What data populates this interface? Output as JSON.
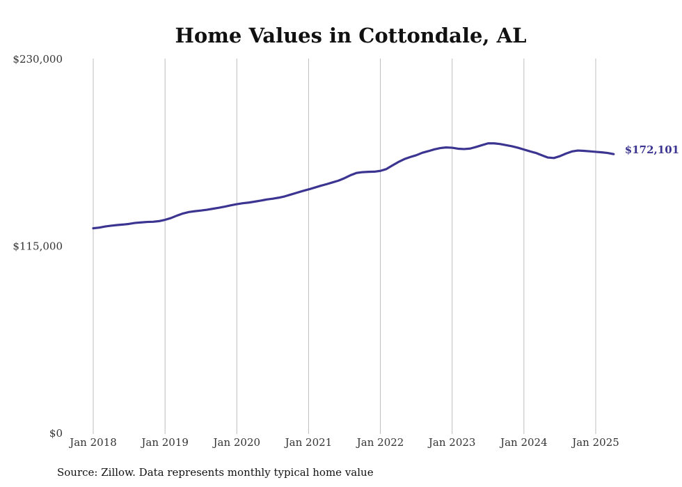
{
  "chart_data": {
    "type": "line",
    "title": "Home Values in Cottondale, AL",
    "xlabel": "",
    "ylabel": "",
    "ylim": [
      0,
      230000
    ],
    "y_ticks": [
      {
        "value": 230000,
        "label": "$230,000"
      },
      {
        "value": 115000,
        "label": "$115,000"
      },
      {
        "value": 0,
        "label": "$0"
      }
    ],
    "x_ticks": [
      {
        "value": "2018-01",
        "label": "Jan 2018"
      },
      {
        "value": "2019-01",
        "label": "Jan 2019"
      },
      {
        "value": "2020-01",
        "label": "Jan 2020"
      },
      {
        "value": "2021-01",
        "label": "Jan 2021"
      },
      {
        "value": "2022-01",
        "label": "Jan 2022"
      },
      {
        "value": "2023-01",
        "label": "Jan 2023"
      },
      {
        "value": "2024-01",
        "label": "Jan 2024"
      },
      {
        "value": "2025-01",
        "label": "Jan 2025"
      }
    ],
    "grid": "vertical",
    "color": "#3b3591",
    "end_label": "$172,101",
    "source": "Source: Zillow. Data represents monthly typical home value",
    "series": [
      {
        "points": [
          [
            "2018-01",
            126500
          ],
          [
            "2018-02",
            126900
          ],
          [
            "2018-03",
            127600
          ],
          [
            "2018-04",
            128100
          ],
          [
            "2018-05",
            128500
          ],
          [
            "2018-06",
            128800
          ],
          [
            "2018-07",
            129200
          ],
          [
            "2018-08",
            129800
          ],
          [
            "2018-09",
            130100
          ],
          [
            "2018-10",
            130400
          ],
          [
            "2018-11",
            130500
          ],
          [
            "2018-12",
            130900
          ],
          [
            "2019-01",
            131700
          ],
          [
            "2019-02",
            132800
          ],
          [
            "2019-03",
            134300
          ],
          [
            "2019-04",
            135600
          ],
          [
            "2019-05",
            136500
          ],
          [
            "2019-06",
            137000
          ],
          [
            "2019-07",
            137400
          ],
          [
            "2019-08",
            137900
          ],
          [
            "2019-09",
            138500
          ],
          [
            "2019-10",
            139100
          ],
          [
            "2019-11",
            139800
          ],
          [
            "2019-12",
            140600
          ],
          [
            "2020-01",
            141300
          ],
          [
            "2020-02",
            141900
          ],
          [
            "2020-03",
            142300
          ],
          [
            "2020-04",
            142900
          ],
          [
            "2020-05",
            143500
          ],
          [
            "2020-06",
            144200
          ],
          [
            "2020-07",
            144700
          ],
          [
            "2020-08",
            145300
          ],
          [
            "2020-09",
            146100
          ],
          [
            "2020-10",
            147200
          ],
          [
            "2020-11",
            148300
          ],
          [
            "2020-12",
            149400
          ],
          [
            "2021-01",
            150400
          ],
          [
            "2021-02",
            151500
          ],
          [
            "2021-03",
            152600
          ],
          [
            "2021-04",
            153600
          ],
          [
            "2021-05",
            154700
          ],
          [
            "2021-06",
            155800
          ],
          [
            "2021-07",
            157300
          ],
          [
            "2021-08",
            159100
          ],
          [
            "2021-09",
            160500
          ],
          [
            "2021-10",
            161000
          ],
          [
            "2021-11",
            161200
          ],
          [
            "2021-12",
            161300
          ],
          [
            "2022-01",
            161800
          ],
          [
            "2022-02",
            162900
          ],
          [
            "2022-03",
            165100
          ],
          [
            "2022-04",
            167200
          ],
          [
            "2022-05",
            169000
          ],
          [
            "2022-06",
            170300
          ],
          [
            "2022-07",
            171400
          ],
          [
            "2022-08",
            172900
          ],
          [
            "2022-09",
            173900
          ],
          [
            "2022-10",
            175000
          ],
          [
            "2022-11",
            175800
          ],
          [
            "2022-12",
            176200
          ],
          [
            "2023-01",
            176000
          ],
          [
            "2023-02",
            175400
          ],
          [
            "2023-03",
            175200
          ],
          [
            "2023-04",
            175500
          ],
          [
            "2023-05",
            176500
          ],
          [
            "2023-06",
            177600
          ],
          [
            "2023-07",
            178700
          ],
          [
            "2023-08",
            178700
          ],
          [
            "2023-09",
            178300
          ],
          [
            "2023-10",
            177600
          ],
          [
            "2023-11",
            176900
          ],
          [
            "2023-12",
            176000
          ],
          [
            "2024-01",
            174900
          ],
          [
            "2024-02",
            173800
          ],
          [
            "2024-03",
            172800
          ],
          [
            "2024-04",
            171400
          ],
          [
            "2024-05",
            170000
          ],
          [
            "2024-06",
            169700
          ],
          [
            "2024-07",
            170800
          ],
          [
            "2024-08",
            172400
          ],
          [
            "2024-09",
            173700
          ],
          [
            "2024-10",
            174300
          ],
          [
            "2024-11",
            174100
          ],
          [
            "2024-12",
            173800
          ],
          [
            "2025-01",
            173500
          ],
          [
            "2025-02",
            173200
          ],
          [
            "2025-03",
            172800
          ],
          [
            "2025-04",
            172101
          ]
        ]
      }
    ]
  }
}
